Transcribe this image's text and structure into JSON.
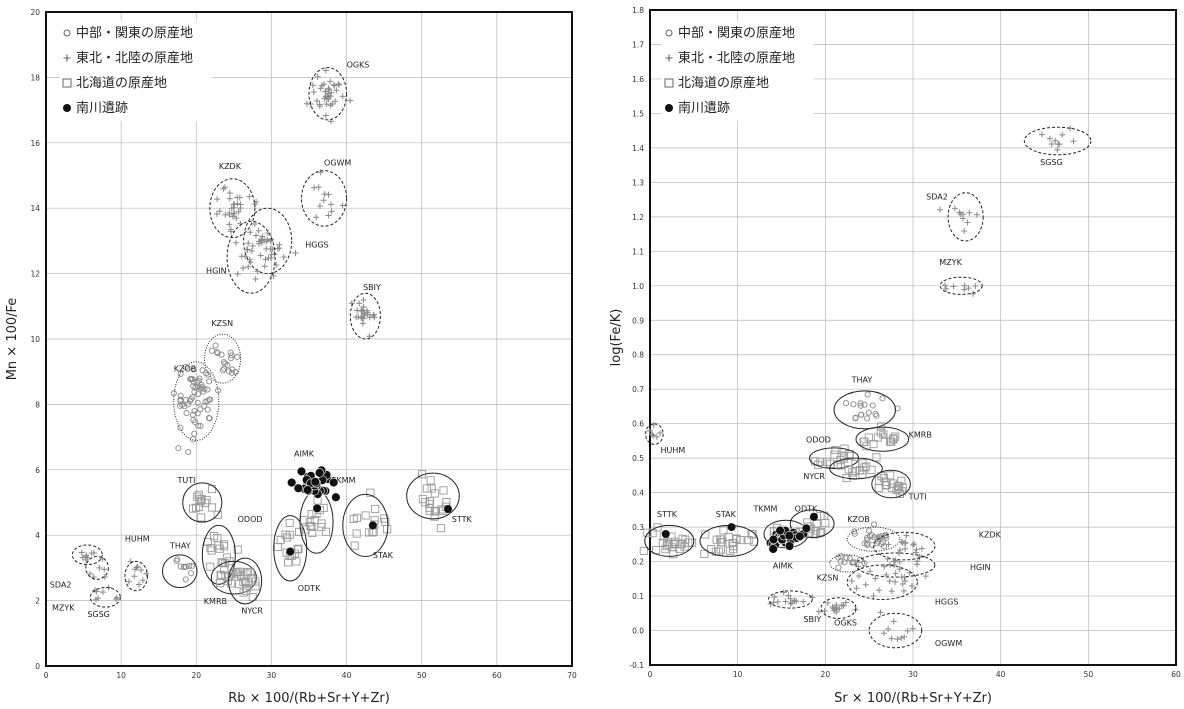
{
  "chart_data": [
    {
      "type": "scatter",
      "xlabel": "Rb × 100/(Rb+Sr+Y+Zr)",
      "ylabel": "Mn × 100/Fe",
      "xlim": [
        0,
        70
      ],
      "ylim": [
        0,
        20
      ],
      "xticks": [
        "0",
        "10",
        "20",
        "30",
        "40",
        "50",
        "60",
        "70"
      ],
      "yticks": [
        "0",
        "2",
        "4",
        "6",
        "8",
        "10",
        "12",
        "14",
        "16",
        "18",
        "20"
      ],
      "grid": true,
      "legend_position": "top-left",
      "legend": [
        {
          "symbol": "circle-open",
          "label": "中部・関東の原産地"
        },
        {
          "symbol": "plus",
          "label": "東北・北陸の原産地"
        },
        {
          "symbol": "square-open",
          "label": "北海道の原産地"
        },
        {
          "symbol": "circle-filled",
          "label": "南川遺跡"
        }
      ],
      "groups": [
        {
          "name": "OGKS",
          "region": "tohoku",
          "cx": 37.5,
          "cy": 17.5,
          "rx": 2.5,
          "ry": 0.8,
          "ellipse": "dashed",
          "n": 40,
          "label_x": 40,
          "label_y": 18.3
        },
        {
          "name": "KZDK",
          "region": "tohoku",
          "cx": 24.8,
          "cy": 14.0,
          "rx": 3.0,
          "ry": 0.9,
          "ellipse": "dashed",
          "n": 30,
          "label_x": 23.0,
          "label_y": 15.2
        },
        {
          "name": "OGWM",
          "region": "tohoku",
          "cx": 37.0,
          "cy": 14.3,
          "rx": 3.0,
          "ry": 0.85,
          "ellipse": "dashed",
          "n": 12,
          "label_x": 37.0,
          "label_y": 15.3
        },
        {
          "name": "HGGS",
          "region": "tohoku",
          "cx": 29.5,
          "cy": 13.0,
          "rx": 3.2,
          "ry": 1.0,
          "ellipse": "dashed",
          "n": 35,
          "label_x": 34.5,
          "label_y": 12.8
        },
        {
          "name": "HGIN",
          "region": "tohoku",
          "cx": 27.3,
          "cy": 12.5,
          "rx": 3.2,
          "ry": 1.1,
          "ellipse": "dashed",
          "n": 15,
          "label_x": 21.3,
          "label_y": 12.0
        },
        {
          "name": "SBIY",
          "region": "tohoku",
          "cx": 42.5,
          "cy": 10.7,
          "rx": 2.0,
          "ry": 0.7,
          "ellipse": "dashed",
          "n": 25,
          "label_x": 42.2,
          "label_y": 11.5
        },
        {
          "name": "KZSN",
          "region": "chubu",
          "cx": 23.5,
          "cy": 9.4,
          "rx": 2.4,
          "ry": 0.75,
          "ellipse": "dotted",
          "n": 20,
          "label_x": 22.0,
          "label_y": 10.4
        },
        {
          "name": "KZOB",
          "region": "chubu",
          "cx": 20.0,
          "cy": 8.1,
          "rx": 3.0,
          "ry": 1.2,
          "ellipse": "dotted",
          "n": 60,
          "label_x": 17.0,
          "label_y": 9.0
        },
        {
          "name": "TUTI",
          "region": "hokkaido",
          "cx": 20.8,
          "cy": 5.0,
          "rx": 2.6,
          "ry": 0.6,
          "ellipse": "solid",
          "n": 14,
          "label_x": 17.5,
          "label_y": 5.6
        },
        {
          "name": "ODOD",
          "region": "hokkaido",
          "cx": 23.0,
          "cy": 3.4,
          "rx": 2.2,
          "ry": 0.9,
          "ellipse": "solid",
          "n": 18,
          "label_x": 25.5,
          "label_y": 4.4
        },
        {
          "name": "THAY",
          "region": "chubu",
          "cx": 17.8,
          "cy": 2.9,
          "rx": 2.3,
          "ry": 0.5,
          "ellipse": "solid",
          "n": 10,
          "label_x": 16.5,
          "label_y": 3.6
        },
        {
          "name": "KMRB",
          "region": "hokkaido",
          "cx": 25.0,
          "cy": 2.7,
          "rx": 3.0,
          "ry": 0.5,
          "ellipse": "solid",
          "n": 15,
          "label_x": 21.0,
          "label_y": 1.9
        },
        {
          "name": "NYCR",
          "region": "hokkaido",
          "cx": 26.5,
          "cy": 2.6,
          "rx": 2.2,
          "ry": 0.7,
          "ellipse": "solid",
          "n": 12,
          "label_x": 26.0,
          "label_y": 1.6
        },
        {
          "name": "HUHM",
          "region": "tohoku",
          "cx": 12.0,
          "cy": 2.75,
          "rx": 1.5,
          "ry": 0.45,
          "ellipse": "dashed",
          "n": 10,
          "label_x": 10.5,
          "label_y": 3.8
        },
        {
          "name": "SDA2",
          "region": "tohoku",
          "cx": 5.5,
          "cy": 3.4,
          "rx": 2.0,
          "ry": 0.3,
          "ellipse": "dashed",
          "n": 8,
          "label_x": 0.5,
          "label_y": 2.4
        },
        {
          "name": "MZYK",
          "region": "tohoku",
          "cx": 6.8,
          "cy": 3.0,
          "rx": 1.5,
          "ry": 0.35,
          "ellipse": "dashed",
          "n": 6,
          "label_x": 0.8,
          "label_y": 1.7
        },
        {
          "name": "SGSG",
          "region": "tohoku",
          "cx": 7.9,
          "cy": 2.1,
          "rx": 2.0,
          "ry": 0.3,
          "ellipse": "dashed",
          "n": 8,
          "label_x": 5.5,
          "label_y": 1.5
        },
        {
          "name": "ODTK",
          "region": "hokkaido",
          "cx": 32.5,
          "cy": 3.6,
          "rx": 2.2,
          "ry": 1.0,
          "ellipse": "solid",
          "n": 15,
          "label_x": 33.5,
          "label_y": 2.3
        },
        {
          "name": "TKMM",
          "region": "hokkaido",
          "cx": 36.0,
          "cy": 4.4,
          "rx": 2.2,
          "ry": 0.95,
          "ellipse": "solid",
          "n": 15,
          "label_x": 38.0,
          "label_y": 5.6
        },
        {
          "name": "STAK",
          "region": "hokkaido",
          "cx": 42.5,
          "cy": 4.3,
          "rx": 3.0,
          "ry": 0.95,
          "ellipse": "solid",
          "n": 15,
          "label_x": 43.5,
          "label_y": 3.3
        },
        {
          "name": "STTK",
          "region": "hokkaido",
          "cx": 51.5,
          "cy": 5.2,
          "rx": 3.5,
          "ry": 0.7,
          "ellipse": "solid",
          "n": 20,
          "label_x": 54.0,
          "label_y": 4.4
        },
        {
          "name": "AIMK",
          "region": "minamikawa",
          "cx": 35.5,
          "cy": 5.6,
          "rx": 3.0,
          "ry": 0.6,
          "ellipse": "none",
          "n": 30,
          "label_x": 33.0,
          "label_y": 6.4
        }
      ],
      "minamikawa_points": [
        {
          "x": 32.5,
          "y": 3.5
        },
        {
          "x": 43.5,
          "y": 4.3
        },
        {
          "x": 53.5,
          "y": 4.8
        }
      ]
    },
    {
      "type": "scatter",
      "xlabel": "Sr × 100/(Rb+Sr+Y+Zr)",
      "ylabel": "log(Fe/K)",
      "xlim": [
        0,
        60
      ],
      "ylim": [
        -0.1,
        1.8
      ],
      "xticks": [
        "0",
        "10",
        "20",
        "30",
        "40",
        "50",
        "60"
      ],
      "yticks": [
        "-0.1",
        "0.0",
        "0.1",
        "0.2",
        "0.3",
        "0.4",
        "0.5",
        "0.6",
        "0.7",
        "0.8",
        "0.9",
        "1.0",
        "1.1",
        "1.2",
        "1.3",
        "1.4",
        "1.5",
        "1.6",
        "1.7",
        "1.8"
      ],
      "grid": true,
      "legend_position": "top-left",
      "legend": [
        {
          "symbol": "circle-open",
          "label": "中部・関東の原産地"
        },
        {
          "symbol": "plus",
          "label": "東北・北陸の原産地"
        },
        {
          "symbol": "square-open",
          "label": "北海道の原産地"
        },
        {
          "symbol": "circle-filled",
          "label": "南川遺跡"
        }
      ],
      "groups": [
        {
          "name": "SGSG",
          "region": "tohoku",
          "cx": 46.5,
          "cy": 1.42,
          "rx": 3.8,
          "ry": 0.04,
          "ellipse": "dashed",
          "n": 10,
          "label_x": 44.5,
          "label_y": 1.35
        },
        {
          "name": "SDA2",
          "region": "tohoku",
          "cx": 36.0,
          "cy": 1.2,
          "rx": 2.0,
          "ry": 0.07,
          "ellipse": "dashed",
          "n": 10,
          "label_x": 31.5,
          "label_y": 1.25
        },
        {
          "name": "MZYK",
          "region": "tohoku",
          "cx": 35.5,
          "cy": 1.0,
          "rx": 2.4,
          "ry": 0.025,
          "ellipse": "dashed",
          "n": 8,
          "label_x": 33.0,
          "label_y": 1.06
        },
        {
          "name": "THAY",
          "region": "chubu",
          "cx": 24.5,
          "cy": 0.64,
          "rx": 3.5,
          "ry": 0.055,
          "ellipse": "solid",
          "n": 18,
          "label_x": 23.0,
          "label_y": 0.72
        },
        {
          "name": "KMRB",
          "region": "hokkaido",
          "cx": 26.5,
          "cy": 0.555,
          "rx": 3.0,
          "ry": 0.035,
          "ellipse": "solid",
          "n": 15,
          "label_x": 29.5,
          "label_y": 0.56
        },
        {
          "name": "HUHM",
          "region": "tohoku",
          "cx": 0.5,
          "cy": 0.57,
          "rx": 1.0,
          "ry": 0.03,
          "ellipse": "dashed",
          "n": 6,
          "label_x": 1.2,
          "label_y": 0.515
        },
        {
          "name": "ODOD",
          "region": "hokkaido",
          "cx": 21.0,
          "cy": 0.5,
          "rx": 2.8,
          "ry": 0.03,
          "ellipse": "solid",
          "n": 15,
          "label_x": 17.8,
          "label_y": 0.545
        },
        {
          "name": "NYCR",
          "region": "hokkaido",
          "cx": 23.5,
          "cy": 0.47,
          "rx": 3.0,
          "ry": 0.03,
          "ellipse": "solid",
          "n": 15,
          "label_x": 17.5,
          "label_y": 0.44
        },
        {
          "name": "TUTI",
          "region": "hokkaido",
          "cx": 27.5,
          "cy": 0.425,
          "rx": 2.2,
          "ry": 0.04,
          "ellipse": "solid",
          "n": 18,
          "label_x": 29.5,
          "label_y": 0.38
        },
        {
          "name": "STTK",
          "region": "hokkaido",
          "cx": 2.2,
          "cy": 0.26,
          "rx": 2.8,
          "ry": 0.045,
          "ellipse": "solid",
          "n": 25,
          "label_x": 0.8,
          "label_y": 0.33
        },
        {
          "name": "STAK",
          "region": "hokkaido",
          "cx": 9.0,
          "cy": 0.26,
          "rx": 3.3,
          "ry": 0.045,
          "ellipse": "solid",
          "n": 25,
          "label_x": 7.5,
          "label_y": 0.33
        },
        {
          "name": "TKMM",
          "region": "hokkaido",
          "cx": 15.5,
          "cy": 0.28,
          "rx": 2.5,
          "ry": 0.04,
          "ellipse": "solid",
          "n": 15,
          "label_x": 11.8,
          "label_y": 0.345
        },
        {
          "name": "ODTK",
          "region": "hokkaido",
          "cx": 18.5,
          "cy": 0.31,
          "rx": 2.5,
          "ry": 0.04,
          "ellipse": "solid",
          "n": 12,
          "label_x": 16.5,
          "label_y": 0.345
        },
        {
          "name": "AIMK",
          "region": "minamikawa",
          "cx": 15.5,
          "cy": 0.27,
          "rx": 3.0,
          "ry": 0.035,
          "ellipse": "none",
          "n": 30,
          "label_x": 14.0,
          "label_y": 0.18
        },
        {
          "name": "KZOB",
          "region": "chubu",
          "cx": 25.5,
          "cy": 0.265,
          "rx": 3.0,
          "ry": 0.035,
          "ellipse": "dotted",
          "n": 25,
          "label_x": 22.5,
          "label_y": 0.315
        },
        {
          "name": "KZDK",
          "region": "tohoku",
          "cx": 29.0,
          "cy": 0.245,
          "rx": 3.5,
          "ry": 0.04,
          "ellipse": "dashed",
          "n": 15,
          "label_x": 37.5,
          "label_y": 0.27
        },
        {
          "name": "KZSN",
          "region": "chubu",
          "cx": 22.5,
          "cy": 0.195,
          "rx": 2.0,
          "ry": 0.025,
          "ellipse": "dotted",
          "n": 12,
          "label_x": 19.0,
          "label_y": 0.145
        },
        {
          "name": "HGIN",
          "region": "tohoku",
          "cx": 28.0,
          "cy": 0.19,
          "rx": 4.5,
          "ry": 0.035,
          "ellipse": "dashed",
          "n": 12,
          "label_x": 36.5,
          "label_y": 0.175
        },
        {
          "name": "HGGS",
          "region": "tohoku",
          "cx": 26.5,
          "cy": 0.14,
          "rx": 4.0,
          "ry": 0.05,
          "ellipse": "dashed",
          "n": 20,
          "label_x": 32.5,
          "label_y": 0.075
        },
        {
          "name": "SBIY",
          "region": "tohoku",
          "cx": 16.0,
          "cy": 0.09,
          "rx": 2.5,
          "ry": 0.025,
          "ellipse": "dashed",
          "n": 15,
          "label_x": 17.5,
          "label_y": 0.025
        },
        {
          "name": "OGKS",
          "region": "tohoku",
          "cx": 21.5,
          "cy": 0.065,
          "rx": 2.0,
          "ry": 0.03,
          "ellipse": "dashed",
          "n": 15,
          "label_x": 21.0,
          "label_y": 0.015
        },
        {
          "name": "OGWM",
          "region": "tohoku",
          "cx": 28.0,
          "cy": 0.0,
          "rx": 3.0,
          "ry": 0.05,
          "ellipse": "dashed",
          "n": 10,
          "label_x": 32.5,
          "label_y": -0.045
        }
      ],
      "minamikawa_points": [
        {
          "x": 1.8,
          "y": 0.28
        },
        {
          "x": 9.3,
          "y": 0.3
        },
        {
          "x": 18.7,
          "y": 0.33
        }
      ]
    }
  ]
}
